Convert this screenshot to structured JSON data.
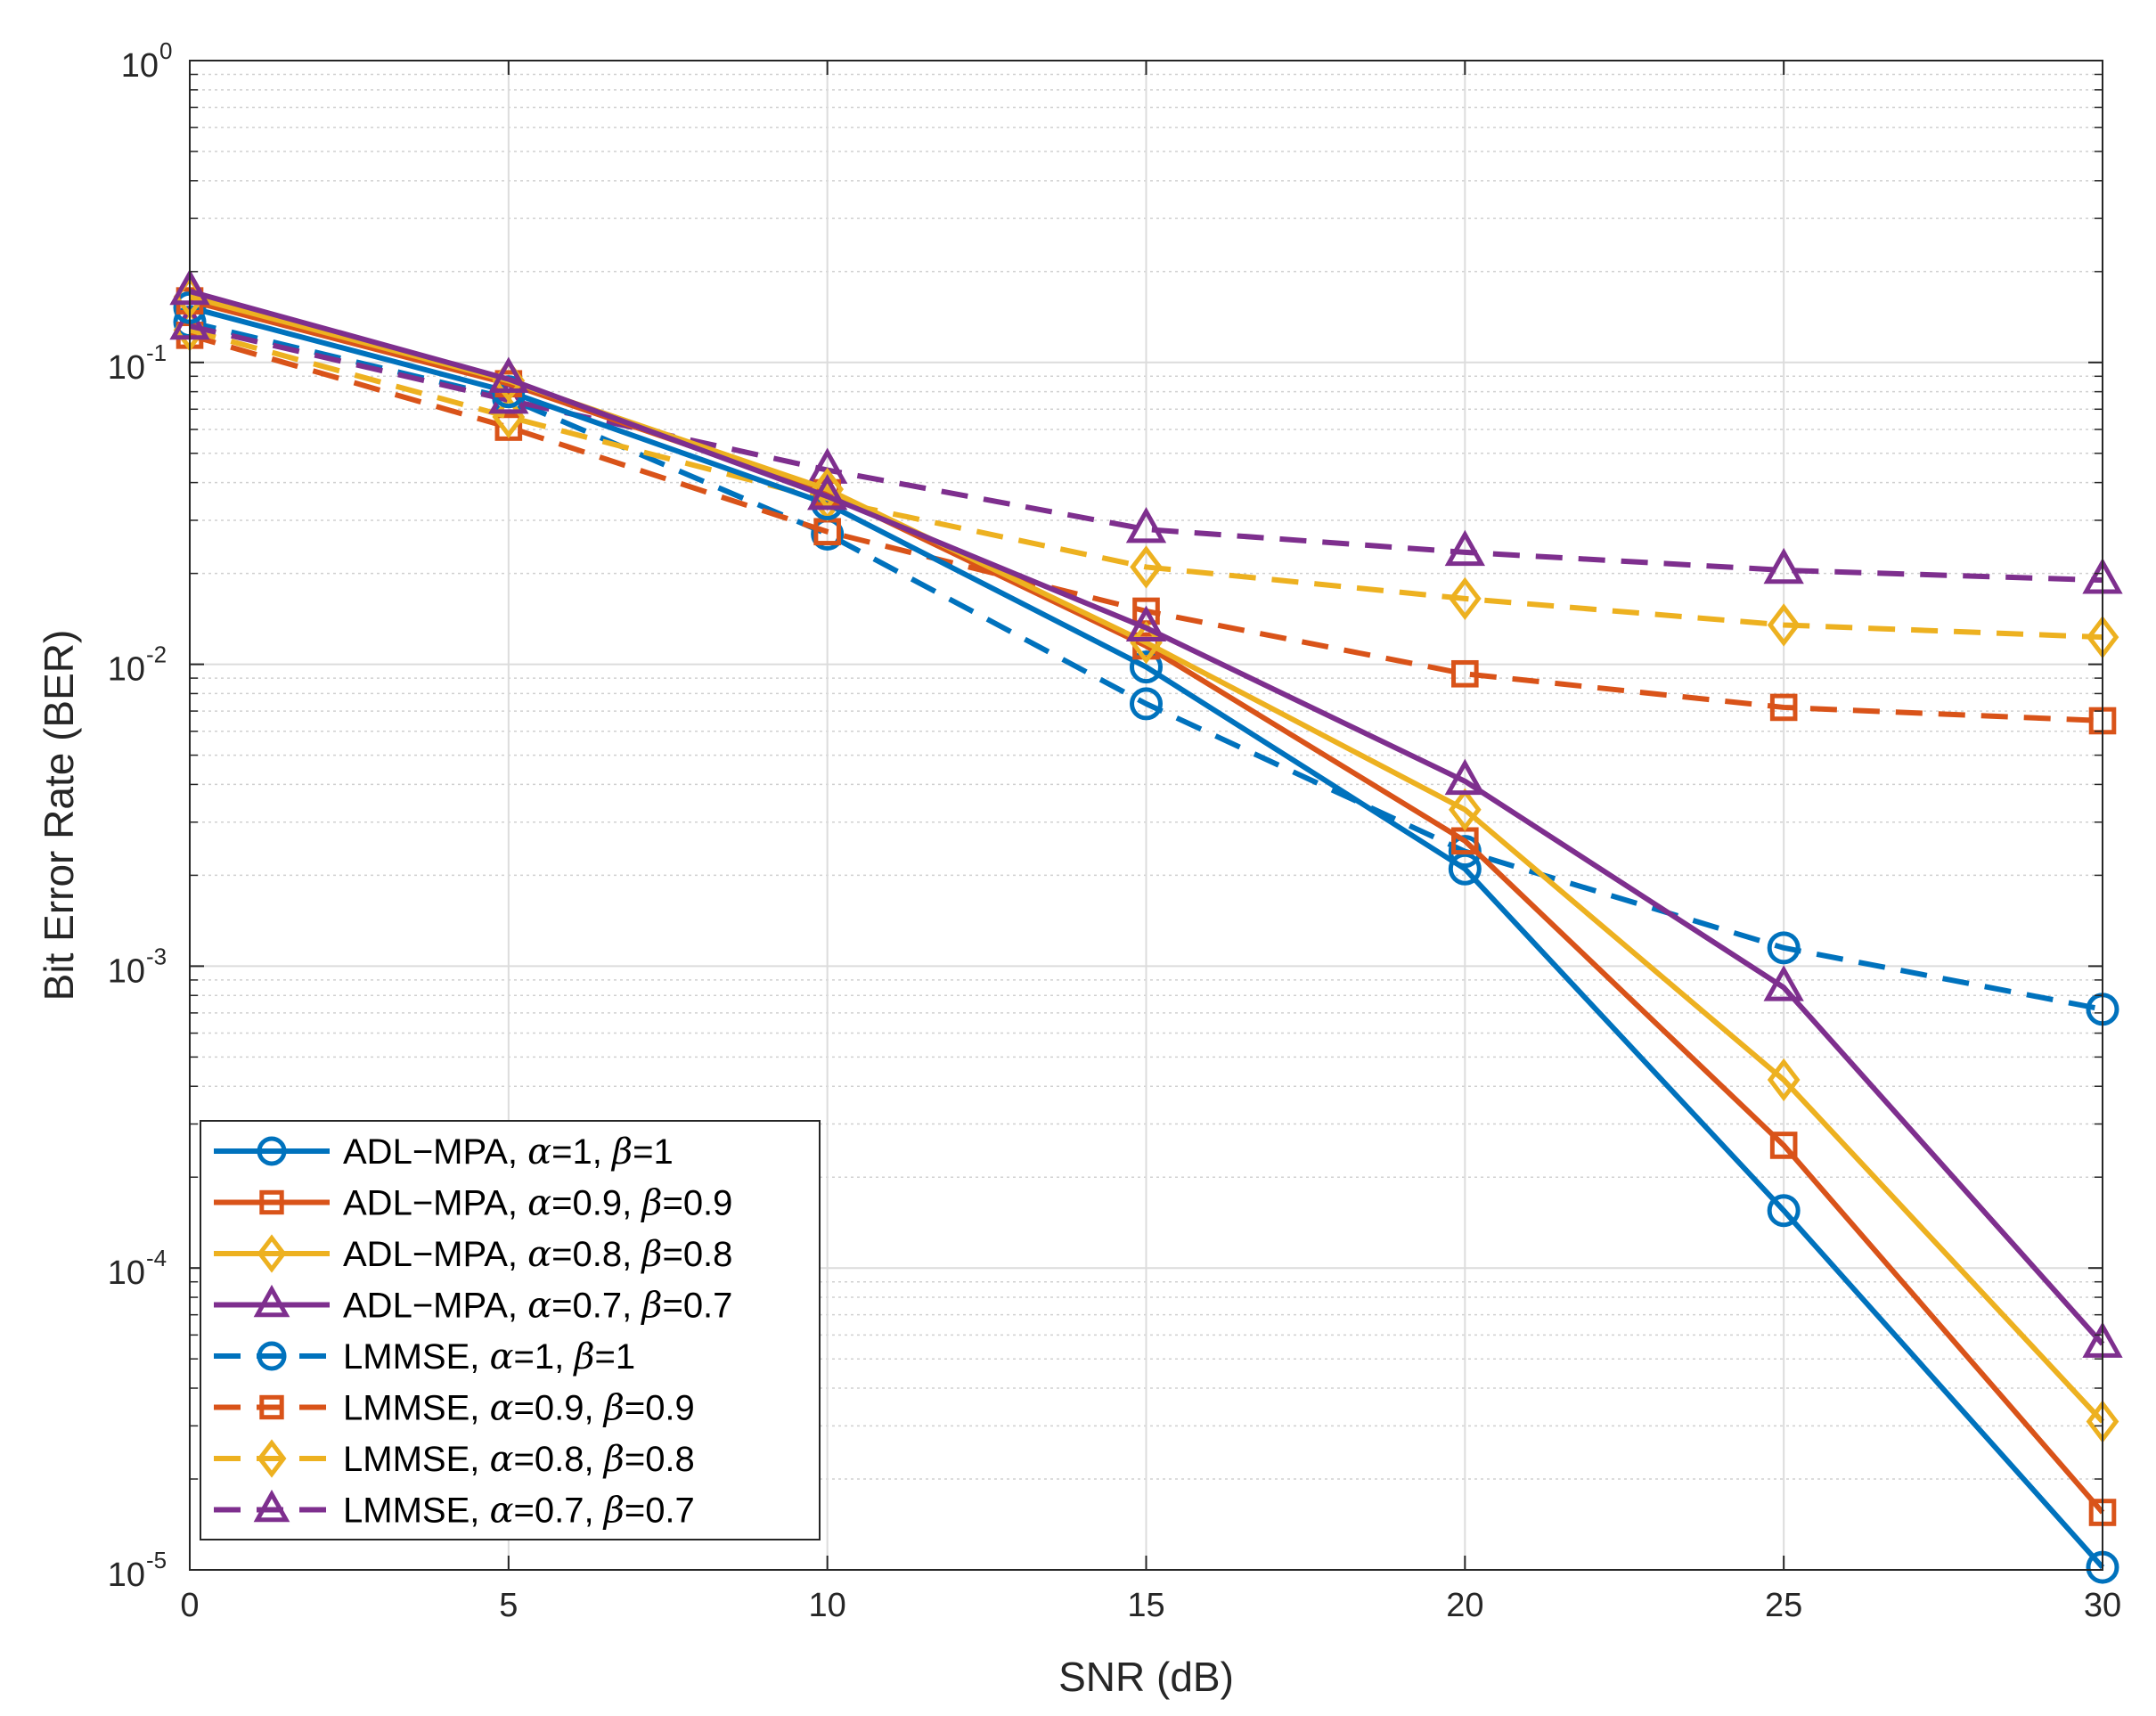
{
  "chart_data": {
    "type": "line",
    "title": "",
    "xlabel": "SNR (dB)",
    "ylabel": "Bit Error Rate (BER)",
    "yscale": "log",
    "xlim": [
      0,
      30
    ],
    "ylim": [
      1e-05,
      1
    ],
    "grid": true,
    "minor_grid": true,
    "legend_position": "bottom-left",
    "x": [
      0,
      5,
      10,
      15,
      20,
      25,
      30
    ],
    "x_ticks": [
      "0",
      "5",
      "10",
      "15",
      "20",
      "25",
      "30"
    ],
    "y_ticks": [
      {
        "value": 1e-05,
        "base": "10",
        "exp": "-5"
      },
      {
        "value": 0.0001,
        "base": "10",
        "exp": "-4"
      },
      {
        "value": 0.001,
        "base": "10",
        "exp": "-3"
      },
      {
        "value": 0.01,
        "base": "10",
        "exp": "-2"
      },
      {
        "value": 0.1,
        "base": "10",
        "exp": "-1"
      },
      {
        "value": 1,
        "base": "10",
        "exp": "0"
      }
    ],
    "series": [
      {
        "method": "ADL−MPA",
        "alpha": "1",
        "beta": "1",
        "color": "#0072BD",
        "line": "solid",
        "marker": "circle",
        "values": [
          0.152,
          0.08,
          0.034,
          0.0098,
          0.0021,
          0.000155,
          1.02e-05
        ]
      },
      {
        "method": "ADL−MPA",
        "alpha": "0.9",
        "beta": "0.9",
        "color": "#D95319",
        "line": "solid",
        "marker": "square",
        "values": [
          0.16,
          0.085,
          0.037,
          0.0115,
          0.0026,
          0.000255,
          1.55e-05
        ]
      },
      {
        "method": "ADL−MPA",
        "alpha": "0.8",
        "beta": "0.8",
        "color": "#EDB120",
        "line": "solid",
        "marker": "diamond",
        "values": [
          0.165,
          0.087,
          0.038,
          0.0118,
          0.0033,
          0.00042,
          3.1e-05
        ]
      },
      {
        "method": "ADL−MPA",
        "alpha": "0.7",
        "beta": "0.7",
        "color": "#7E2F8E",
        "line": "solid",
        "marker": "triangle",
        "values": [
          0.172,
          0.088,
          0.036,
          0.0132,
          0.0041,
          0.00085,
          5.6e-05
        ]
      },
      {
        "method": "LMMSE",
        "alpha": "1",
        "beta": "1",
        "color": "#0072BD",
        "line": "dashed",
        "marker": "circle",
        "values": [
          0.136,
          0.076,
          0.027,
          0.0074,
          0.0024,
          0.00115,
          0.00072
        ]
      },
      {
        "method": "LMMSE",
        "alpha": "0.9",
        "beta": "0.9",
        "color": "#D95319",
        "line": "dashed",
        "marker": "square",
        "values": [
          0.123,
          0.061,
          0.0275,
          0.015,
          0.0093,
          0.0072,
          0.0065
        ]
      },
      {
        "method": "LMMSE",
        "alpha": "0.8",
        "beta": "0.8",
        "color": "#EDB120",
        "line": "dashed",
        "marker": "diamond",
        "values": [
          0.128,
          0.066,
          0.035,
          0.021,
          0.0165,
          0.0135,
          0.0123
        ]
      },
      {
        "method": "LMMSE",
        "alpha": "0.7",
        "beta": "0.7",
        "color": "#7E2F8E",
        "line": "dashed",
        "marker": "triangle",
        "values": [
          0.132,
          0.075,
          0.044,
          0.028,
          0.0235,
          0.0205,
          0.019
        ]
      }
    ]
  }
}
